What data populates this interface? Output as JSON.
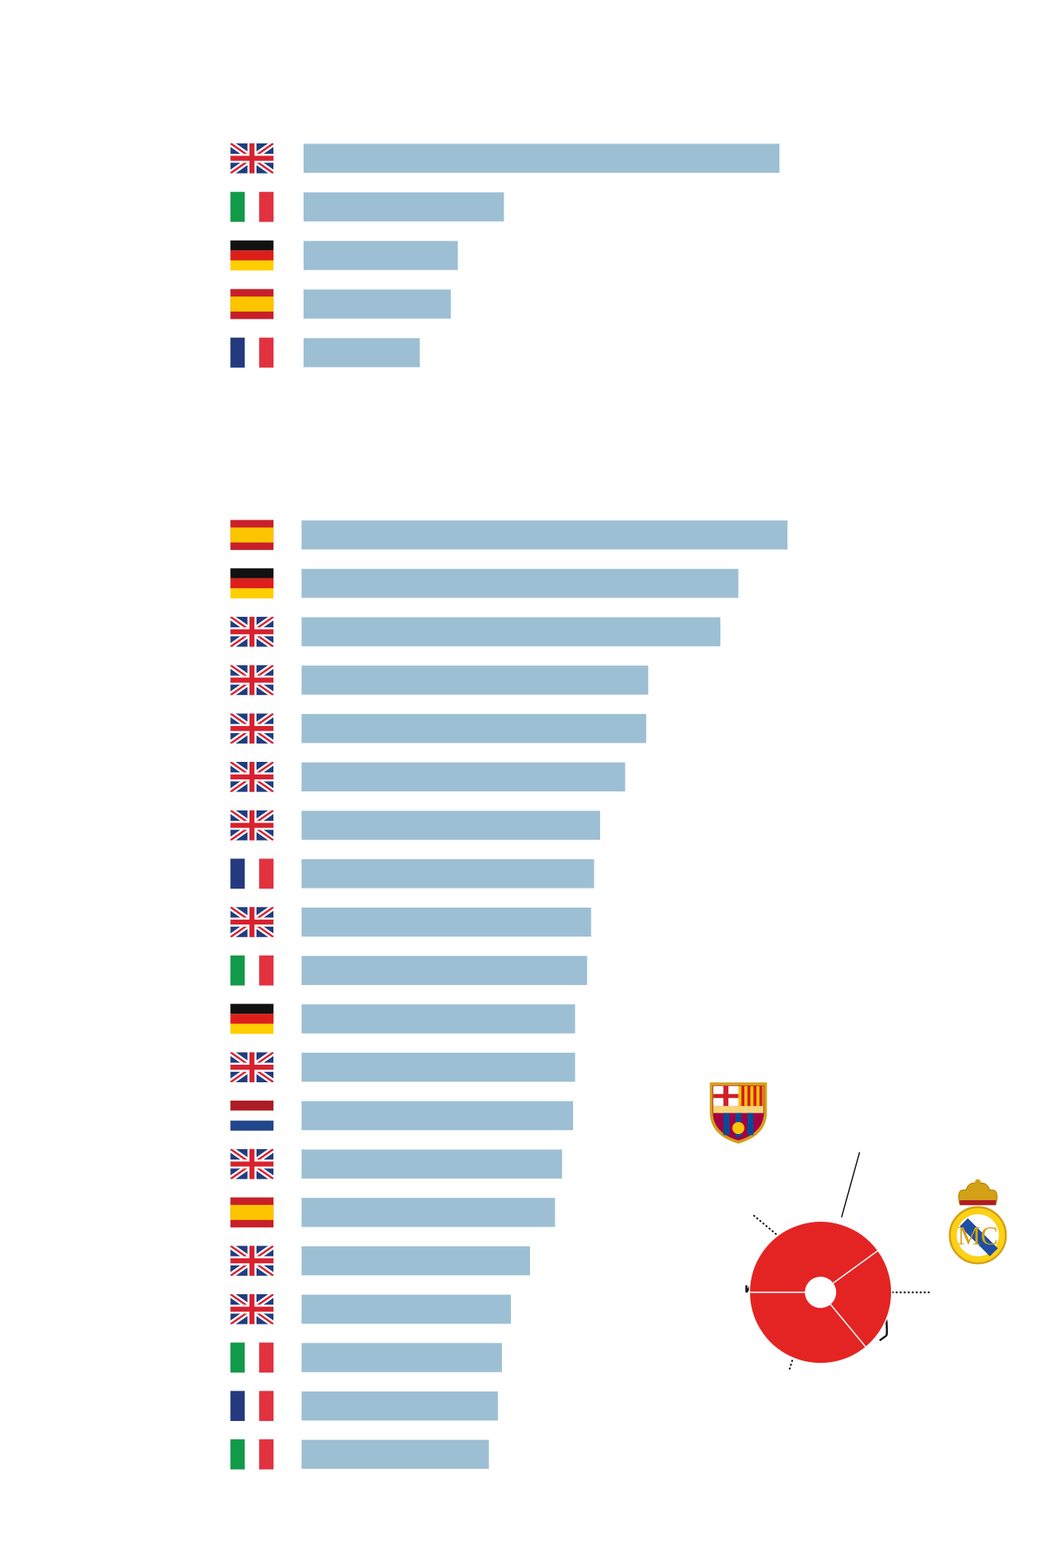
{
  "chart_data": [
    {
      "type": "bar",
      "orientation": "horizontal",
      "color": "#9dbfd4",
      "xlim": [
        0,
        500
      ],
      "values": [
        475,
        200,
        154,
        147,
        116
      ]
    },
    {
      "type": "bar",
      "orientation": "horizontal",
      "color": "#9dbfd4",
      "xlim": [
        0,
        500
      ],
      "values": [
        485,
        436,
        418,
        346,
        344,
        323,
        298,
        292,
        289,
        285,
        273,
        273,
        271,
        260,
        253,
        228,
        209,
        200,
        196,
        187
      ]
    },
    {
      "type": "pie",
      "values": [
        40,
        24,
        36
      ],
      "colors": [
        "#e32423",
        "#e32423",
        "#e32423"
      ]
    }
  ]
}
